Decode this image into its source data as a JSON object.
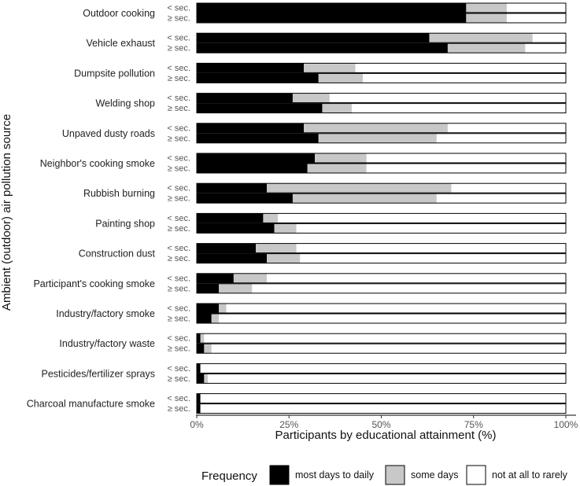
{
  "chart_data": {
    "type": "bar",
    "orientation": "horizontal",
    "stacked": "percent",
    "title": "",
    "xlabel": "Participants by educational attainment (%)",
    "ylabel": "Ambient (outdoor) air pollution source",
    "xlim": [
      0,
      100
    ],
    "x_ticks": [
      "0%",
      "25%",
      "50%",
      "75%",
      "100%"
    ],
    "sub_groups": [
      "< sec.",
      "≥ sec."
    ],
    "categories": [
      "Outdoor cooking",
      "Vehicle exhaust",
      "Dumpsite pollution",
      "Welding shop",
      "Unpaved dusty roads",
      "Neighbor's cooking smoke",
      "Rubbish burning",
      "Painting shop",
      "Construction dust",
      "Participant's cooking smoke",
      "Industry/factory smoke",
      "Industry/factory waste",
      "Pesticides/fertilizer sprays",
      "Charcoal manufacture smoke"
    ],
    "legend": {
      "title": "Frequency",
      "position": "bottom",
      "entries": [
        {
          "label": "most days to daily",
          "color": "#000000"
        },
        {
          "label": "some days",
          "color": "#c8c8c8"
        },
        {
          "label": "not at all to rarely",
          "color": "#ffffff"
        }
      ]
    },
    "series": [
      {
        "name": "most days to daily",
        "color": "#000000",
        "values_lt_sec": [
          73,
          63,
          29,
          26,
          29,
          32,
          19,
          18,
          16,
          10,
          6,
          1,
          1,
          1
        ],
        "values_ge_sec": [
          73,
          68,
          33,
          34,
          33,
          30,
          26,
          21,
          19,
          6,
          4,
          2,
          2,
          1
        ]
      },
      {
        "name": "some days",
        "color": "#c8c8c8",
        "values_lt_sec": [
          11,
          28,
          14,
          10,
          39,
          14,
          50,
          4,
          11,
          9,
          2,
          1,
          0,
          0
        ],
        "values_ge_sec": [
          11,
          21,
          12,
          8,
          32,
          16,
          39,
          6,
          9,
          9,
          2,
          2,
          1,
          0
        ]
      },
      {
        "name": "not at all to rarely",
        "color": "#ffffff",
        "values_lt_sec": [
          16,
          9,
          57,
          64,
          32,
          54,
          31,
          78,
          73,
          81,
          92,
          98,
          99,
          99
        ],
        "values_ge_sec": [
          16,
          11,
          55,
          58,
          35,
          54,
          35,
          73,
          72,
          85,
          94,
          96,
          97,
          99
        ]
      }
    ],
    "grid": false
  }
}
